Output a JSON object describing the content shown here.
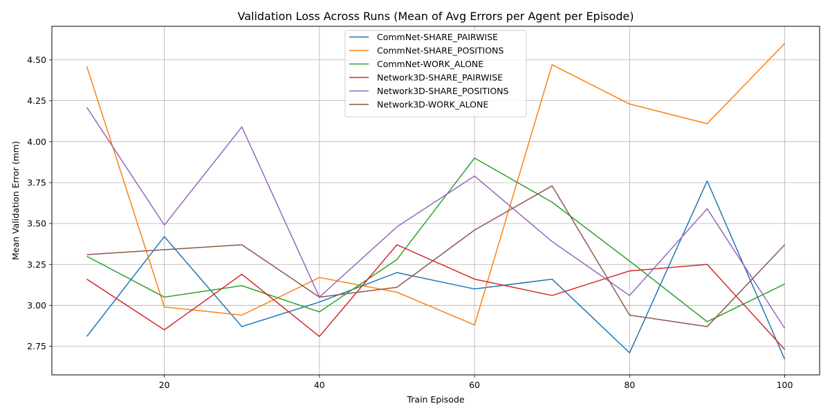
{
  "chart_data": {
    "type": "line",
    "title": "Validation Loss Across Runs (Mean of Avg Errors per Agent per Episode)",
    "xlabel": "Train Episode",
    "ylabel": "Mean Validation Error (mm)",
    "xlim": [
      5.5,
      104.5
    ],
    "ylim": [
      2.575,
      4.705
    ],
    "xticks": [
      20,
      40,
      60,
      80,
      100
    ],
    "xtick_labels": [
      "20",
      "40",
      "60",
      "80",
      "100"
    ],
    "yticks": [
      2.75,
      3.0,
      3.25,
      3.5,
      3.75,
      4.0,
      4.25,
      4.5
    ],
    "ytick_labels": [
      "2.75",
      "3.00",
      "3.25",
      "3.50",
      "3.75",
      "4.00",
      "4.25",
      "4.50"
    ],
    "grid": true,
    "legend_position": "top-center",
    "x": [
      10,
      20,
      30,
      40,
      50,
      60,
      70,
      80,
      90,
      100
    ],
    "series": [
      {
        "name": "CommNet-SHARE_PAIRWISE",
        "color": "#1f77b4",
        "values": [
          2.81,
          3.42,
          2.87,
          3.02,
          3.2,
          3.1,
          3.16,
          2.71,
          3.76,
          2.67
        ]
      },
      {
        "name": "CommNet-SHARE_POSITIONS",
        "color": "#ff7f0e",
        "values": [
          4.46,
          2.99,
          2.94,
          3.17,
          3.08,
          2.88,
          4.47,
          4.23,
          4.11,
          4.6
        ]
      },
      {
        "name": "CommNet-WORK_ALONE",
        "color": "#2ca02c",
        "values": [
          3.3,
          3.05,
          3.12,
          2.96,
          3.28,
          3.9,
          3.63,
          3.27,
          2.9,
          3.13
        ]
      },
      {
        "name": "Network3D-SHARE_PAIRWISE",
        "color": "#d62728",
        "values": [
          3.16,
          2.85,
          3.19,
          2.81,
          3.37,
          3.16,
          3.06,
          3.21,
          3.25,
          2.73
        ]
      },
      {
        "name": "Network3D-SHARE_POSITIONS",
        "color": "#9467bd",
        "values": [
          4.21,
          3.49,
          4.09,
          3.05,
          3.48,
          3.79,
          3.39,
          3.06,
          3.59,
          2.86
        ]
      },
      {
        "name": "Network3D-WORK_ALONE",
        "color": "#8c564b",
        "values": [
          3.31,
          3.34,
          3.37,
          3.05,
          3.11,
          3.46,
          3.73,
          2.94,
          2.87,
          3.37
        ]
      }
    ]
  }
}
